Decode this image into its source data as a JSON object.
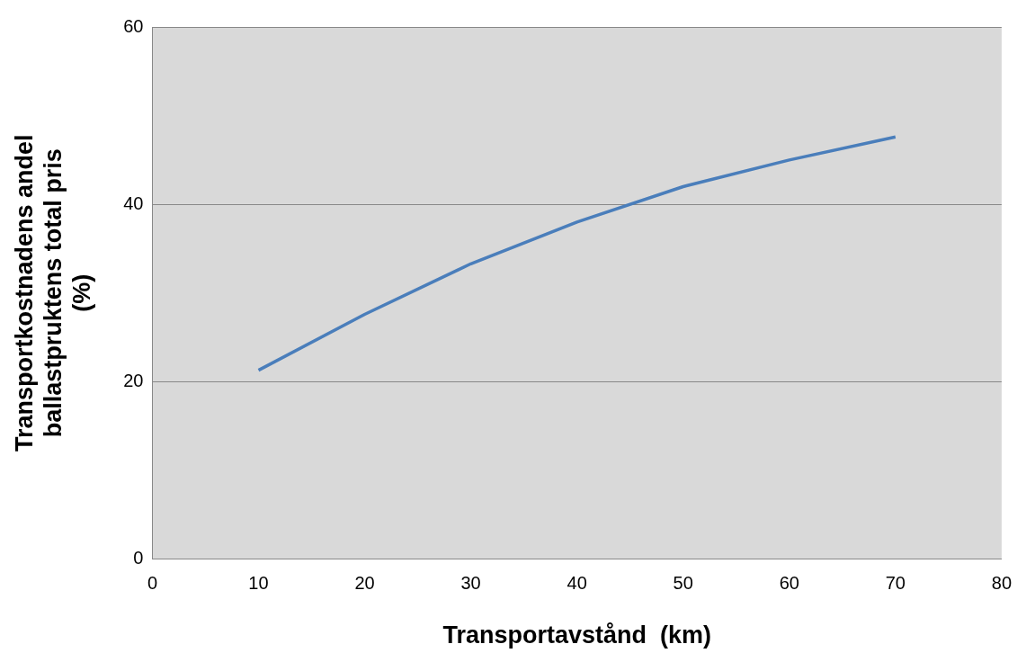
{
  "chart_data": {
    "type": "line",
    "xlabel": "Transportavstånd  (km)",
    "ylabel": "Transportkostnadens andel ballastpruktens total pris (%)",
    "x": [
      10,
      20,
      30,
      40,
      50,
      60,
      70
    ],
    "series": [
      {
        "color": "#4a7ebb",
        "values": [
          21.3,
          27.6,
          33.3,
          38.0,
          42.0,
          45.0,
          47.6
        ]
      }
    ],
    "xlim": [
      0,
      80
    ],
    "xticks": [
      0,
      10,
      20,
      30,
      40,
      50,
      60,
      70,
      80
    ],
    "ylim": [
      0,
      60
    ],
    "yticks": [
      0,
      20,
      40,
      60
    ],
    "grid": "y",
    "legend": false,
    "marker": "none",
    "line_style": "solid"
  }
}
